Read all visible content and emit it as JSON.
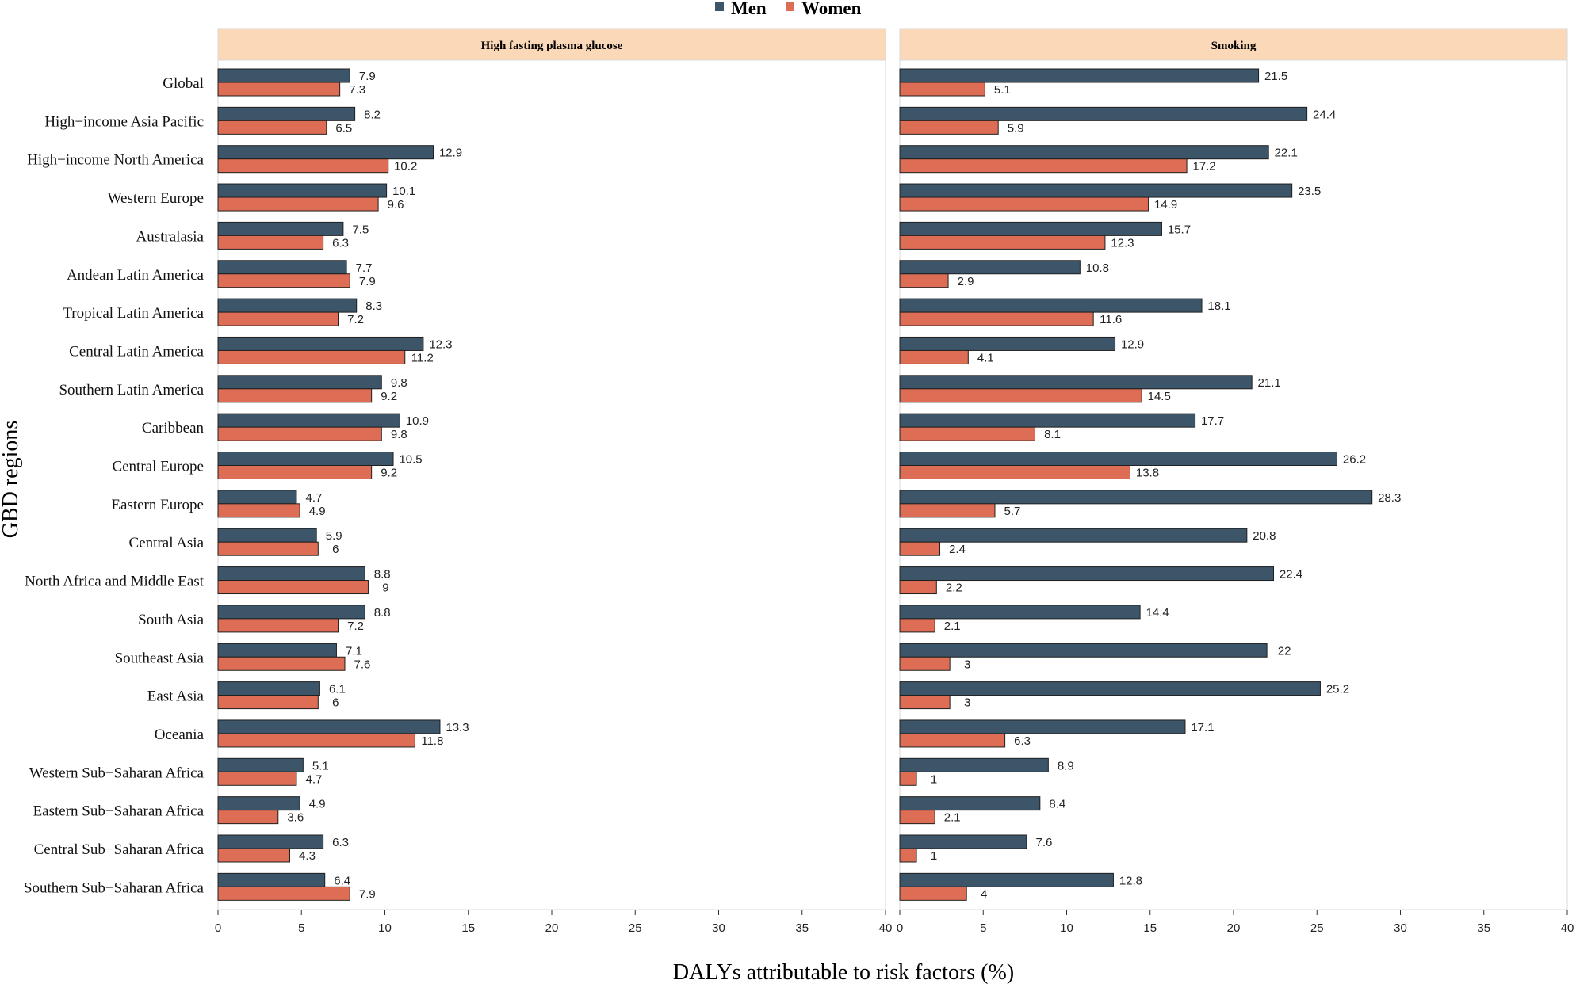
{
  "chart_data": {
    "type": "bar",
    "orientation": "horizontal",
    "xlabel": "DALYs attributable to risk factors (%)",
    "ylabel": "GBD regions",
    "xlim": [
      0,
      40
    ],
    "xticks": [
      "0",
      "5",
      "10",
      "15",
      "20",
      "25",
      "30",
      "35",
      "40"
    ],
    "legend": {
      "placement": "top-center",
      "items": [
        {
          "name": "Men",
          "color": "#3d5568"
        },
        {
          "name": "Women",
          "color": "#dd6e55"
        }
      ]
    },
    "categories": [
      "Global",
      "High−income Asia Pacific",
      "High−income North America",
      "Western Europe",
      "Australasia",
      "Andean Latin America",
      "Tropical Latin America",
      "Central Latin America",
      "Southern Latin America",
      "Caribbean",
      "Central Europe",
      "Eastern Europe",
      "Central Asia",
      "North Africa and Middle East",
      "South Asia",
      "Southeast Asia",
      "East Asia",
      "Oceania",
      "Western Sub−Saharan Africa",
      "Eastern Sub−Saharan Africa",
      "Central Sub−Saharan Africa",
      "Southern Sub−Saharan Africa"
    ],
    "panels": [
      {
        "title": "High fasting plasma glucose",
        "series": [
          {
            "name": "Men",
            "values": [
              7.9,
              8.2,
              12.9,
              10.1,
              7.5,
              7.7,
              8.3,
              12.3,
              9.8,
              10.9,
              10.5,
              4.7,
              5.9,
              8.8,
              8.8,
              7.1,
              6.1,
              13.3,
              5.1,
              4.9,
              6.3,
              6.4
            ]
          },
          {
            "name": "Women",
            "values": [
              7.3,
              6.5,
              10.2,
              9.6,
              6.3,
              7.9,
              7.2,
              11.2,
              9.2,
              9.8,
              9.2,
              4.9,
              6,
              9,
              7.2,
              7.6,
              6,
              11.8,
              4.7,
              3.6,
              4.3,
              7.9
            ]
          }
        ]
      },
      {
        "title": "Smoking",
        "series": [
          {
            "name": "Men",
            "values": [
              21.5,
              24.4,
              22.1,
              23.5,
              15.7,
              10.8,
              18.1,
              12.9,
              21.1,
              17.7,
              26.2,
              28.3,
              20.8,
              22.4,
              14.4,
              22,
              25.2,
              17.1,
              8.9,
              8.4,
              7.6,
              12.8
            ]
          },
          {
            "name": "Women",
            "values": [
              5.1,
              5.9,
              17.2,
              14.9,
              12.3,
              2.9,
              11.6,
              4.1,
              14.5,
              8.1,
              13.8,
              5.7,
              2.4,
              2.2,
              2.1,
              3,
              3,
              6.3,
              1,
              2.1,
              1,
              4
            ]
          }
        ]
      }
    ]
  }
}
